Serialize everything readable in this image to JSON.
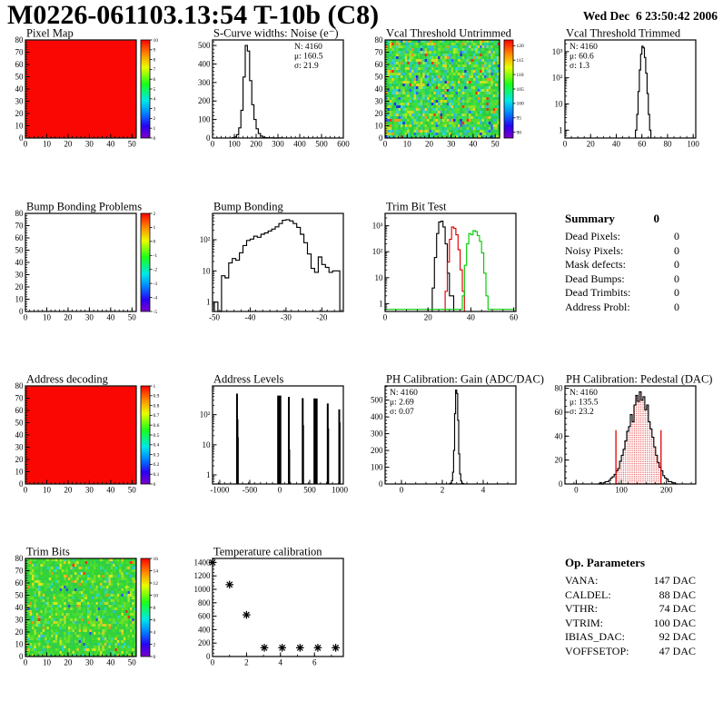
{
  "header": {
    "title": "M0226-061103.13:54 T-10b (C8)",
    "date": "Wed Dec  6 23:50:42 2006"
  },
  "summary": {
    "title": "Summary",
    "value": "0",
    "rows": [
      {
        "label": "Dead Pixels:",
        "value": "0"
      },
      {
        "label": "Noisy Pixels:",
        "value": "0"
      },
      {
        "label": "Mask defects:",
        "value": "0"
      },
      {
        "label": "Dead Bumps:",
        "value": "0"
      },
      {
        "label": "Dead Trimbits:",
        "value": "0"
      },
      {
        "label": "Address Probl:",
        "value": "0"
      }
    ]
  },
  "op_parameters": {
    "title": "Op. Parameters",
    "rows": [
      {
        "label": "VANA:",
        "value": "147 DAC"
      },
      {
        "label": "CALDEL:",
        "value": "88 DAC"
      },
      {
        "label": "VTHR:",
        "value": "74 DAC"
      },
      {
        "label": "VTRIM:",
        "value": "100 DAC"
      },
      {
        "label": "IBIAS_DAC:",
        "value": "92 DAC"
      },
      {
        "label": "VOFFSETOP:",
        "value": "47 DAC"
      }
    ]
  },
  "colors": {
    "map_red": "#fb0703",
    "hist_black": "#000000",
    "hist_red": "#e00000",
    "hist_green": "#00cc00"
  },
  "chart_data": [
    {
      "id": "pixel_map",
      "type": "heatmap",
      "title": "Pixel Map",
      "xlim": [
        0,
        52
      ],
      "ylim": [
        0,
        80
      ],
      "xticks": [
        0,
        10,
        20,
        30,
        40,
        50
      ],
      "yticks": [
        0,
        10,
        20,
        30,
        40,
        50,
        60,
        70,
        80
      ],
      "xminor": 2,
      "yminor": 2,
      "fill": "uniform",
      "fill_color": "#fb0703",
      "colorbar": {
        "min": 0,
        "max": 10,
        "ticks": [
          0,
          1,
          2,
          3,
          4,
          5,
          6,
          7,
          8,
          9,
          10
        ]
      }
    },
    {
      "id": "scurve_noise",
      "type": "hist",
      "title": "S-Curve widths: Noise (e⁻)",
      "xlim": [
        0,
        600
      ],
      "xticks": [
        0,
        100,
        200,
        300,
        400,
        500,
        600
      ],
      "xminor": 20,
      "yscale": "linear",
      "ylim": [
        0,
        530
      ],
      "yticks": [
        0,
        100,
        200,
        300,
        400,
        500
      ],
      "yminor": 20,
      "x0": 90,
      "bin": 10,
      "values": [
        2,
        6,
        18,
        55,
        150,
        330,
        500,
        470,
        310,
        180,
        100,
        50,
        24,
        11,
        5,
        2,
        1,
        1,
        1,
        0,
        0,
        1,
        1
      ],
      "stats": {
        "pos": "tr",
        "lines": [
          {
            "text": "N: 4160"
          },
          {
            "text": "μ: 160.5"
          },
          {
            "text": "σ: 21.9"
          }
        ]
      }
    },
    {
      "id": "vcal_untrimmed",
      "type": "heatmap",
      "title": "Vcal Threshold Untrimmed",
      "xlim": [
        0,
        52
      ],
      "ylim": [
        0,
        80
      ],
      "xticks": [
        0,
        10,
        20,
        30,
        40,
        50
      ],
      "yticks": [
        0,
        10,
        20,
        30,
        40,
        50,
        60,
        70,
        80
      ],
      "xminor": 2,
      "yminor": 2,
      "fill": "noise",
      "seed": 7,
      "palette": [
        [
          "#22d06a",
          3
        ],
        [
          "#2ecc40",
          6
        ],
        [
          "#3ae03a",
          5
        ],
        [
          "#59dd2e",
          4
        ],
        [
          "#8ce42c",
          3
        ],
        [
          "#bfe626",
          2
        ],
        [
          "#29d2a4",
          3
        ],
        [
          "#34d6d6",
          2
        ],
        [
          "#3aaee8",
          1.2
        ],
        [
          "#2f66f2",
          0.8
        ],
        [
          "#2430e0",
          0.4
        ],
        [
          "#f2d01e",
          1.2
        ],
        [
          "#f0961c",
          0.6
        ],
        [
          "#ea3414",
          0.4
        ]
      ],
      "colorbar": {
        "min": 88,
        "max": 122,
        "ticks": [
          90,
          95,
          100,
          105,
          110,
          115,
          120
        ]
      }
    },
    {
      "id": "vcal_trimmed",
      "type": "hist",
      "title": "Vcal Threshold Trimmed",
      "xlim": [
        0,
        102
      ],
      "xticks": [
        0,
        20,
        40,
        60,
        80,
        100
      ],
      "xminor": 5,
      "yscale": "log",
      "ylim": [
        0.5,
        2800
      ],
      "yticks": [
        [
          1,
          "1"
        ],
        [
          10,
          "10"
        ],
        [
          100,
          "10²"
        ],
        [
          1000,
          "10³"
        ]
      ],
      "x0": 55,
      "bin": 1,
      "values": [
        1,
        4,
        30,
        200,
        800,
        1600,
        1400,
        600,
        150,
        25,
        4,
        1
      ],
      "stats": {
        "pos": "tl",
        "lines": [
          {
            "text": "N: 4160"
          },
          {
            "text": "μ: 60.6"
          },
          {
            "text": "σ:  1.3"
          }
        ]
      }
    },
    {
      "id": "bump_problems",
      "type": "heatmap",
      "title": "Bump Bonding Problems",
      "xlim": [
        0,
        52
      ],
      "ylim": [
        0,
        80
      ],
      "xticks": [
        0,
        10,
        20,
        30,
        40,
        50
      ],
      "yticks": [
        0,
        10,
        20,
        30,
        40,
        50,
        60,
        70,
        80
      ],
      "xminor": 2,
      "yminor": 2,
      "fill": "none",
      "colorbar": {
        "min": -5,
        "max": 2,
        "ticks": [
          -5,
          -4,
          -3,
          -2,
          -1,
          0,
          1,
          2
        ]
      }
    },
    {
      "id": "bump_bonding",
      "type": "hist",
      "title": "Bump Bonding",
      "xlim": [
        -50.5,
        -14
      ],
      "xticks": [
        -50,
        -40,
        -30,
        -20
      ],
      "xminor": 2,
      "yscale": "log",
      "ylim": [
        0.5,
        700
      ],
      "yticks": [
        [
          1,
          "1"
        ],
        [
          10,
          "10"
        ],
        [
          100,
          "10²"
        ]
      ],
      "x0": -50,
      "bin": 1,
      "values": [
        1,
        0,
        7,
        6,
        18,
        25,
        22,
        38,
        65,
        95,
        105,
        130,
        120,
        150,
        165,
        190,
        220,
        260,
        330,
        420,
        440,
        400,
        330,
        250,
        150,
        80,
        35,
        12,
        9,
        28,
        16,
        13,
        9,
        10,
        10
      ]
    },
    {
      "id": "trim_bit_test",
      "type": "hist",
      "title": "Trim Bit Test",
      "xlim": [
        0,
        61
      ],
      "xticks": [
        0,
        20,
        40,
        60
      ],
      "xminor": 5,
      "yscale": "log",
      "ylim": [
        0.5,
        3000
      ],
      "yticks": [
        [
          1,
          "1"
        ],
        [
          10,
          "10"
        ],
        [
          100,
          "10²"
        ],
        [
          1000,
          "10³"
        ]
      ],
      "series": [
        {
          "x0": 22,
          "bin": 1,
          "color": "#000000",
          "values": [
            4,
            60,
            500,
            1400,
            1500,
            900,
            200,
            15,
            2,
            2
          ]
        },
        {
          "x0": 28,
          "bin": 1,
          "color": "#e00000",
          "values": [
            3,
            40,
            300,
            900,
            800,
            450,
            120,
            20,
            3
          ]
        },
        {
          "x0": 0,
          "bin": 1,
          "color": "#00cc00",
          "values": [
            0.6,
            0.6,
            0.6,
            0.6,
            0.6,
            0.6,
            0.6,
            0.6,
            0.6,
            0.6,
            0.6,
            0.6,
            0.6,
            0.6,
            0.6,
            0.6,
            0.6,
            0.6,
            0.6,
            0.6,
            0.6,
            0.6,
            0.6,
            0.6,
            0.6,
            0.6,
            0.6,
            0.6,
            0.6,
            0.6,
            0.6,
            0.6,
            0.6,
            0.6,
            0.6,
            0.6,
            2,
            30,
            200,
            500,
            450,
            650,
            600,
            420,
            250,
            90,
            15,
            2,
            0.6,
            0.6,
            0.6,
            0.6,
            0.6,
            0.6,
            0.6,
            0.6,
            0.6,
            0.6,
            0.6,
            0.6
          ]
        }
      ]
    },
    {
      "id": "address_decoding",
      "type": "heatmap",
      "title": "Address decoding",
      "xlim": [
        0,
        52
      ],
      "ylim": [
        0,
        80
      ],
      "xticks": [
        0,
        10,
        20,
        30,
        40,
        50
      ],
      "yticks": [
        0,
        10,
        20,
        30,
        40,
        50,
        60,
        70,
        80
      ],
      "xminor": 2,
      "yminor": 2,
      "fill": "uniform",
      "fill_color": "#fb0703",
      "colorbar": {
        "min": 0,
        "max": 1,
        "ticks": [
          0,
          0.1,
          0.2,
          0.3,
          0.4,
          0.5,
          0.6,
          0.7,
          0.8,
          0.9,
          1
        ]
      }
    },
    {
      "id": "address_levels",
      "type": "spikes",
      "title": "Address Levels",
      "xlim": [
        -1120,
        1060
      ],
      "xticks": [
        -1000,
        -500,
        0,
        500,
        1000
      ],
      "xminor": 100,
      "yscale": "log",
      "ylim": [
        0.5,
        900
      ],
      "yticks": [
        [
          1,
          "1"
        ],
        [
          10,
          "10"
        ],
        [
          100,
          "10²"
        ]
      ],
      "spikes": [
        [
          -712,
          500,
          2
        ],
        [
          -700,
          70,
          1.4
        ],
        [
          -694,
          18,
          1.4
        ],
        [
          -8,
          430,
          4.5
        ],
        [
          152,
          390,
          2
        ],
        [
          163,
          7,
          1.4
        ],
        [
          383,
          355,
          2
        ],
        [
          394,
          45,
          1.4
        ],
        [
          597,
          345,
          4.5
        ],
        [
          800,
          235,
          2
        ],
        [
          812,
          35,
          1.4
        ],
        [
          992,
          150,
          2
        ],
        [
          1003,
          55,
          1.4
        ]
      ]
    },
    {
      "id": "ph_gain",
      "type": "hist",
      "title": "PH Calibration: Gain (ADC/DAC)",
      "xlim": [
        -0.8,
        5.6
      ],
      "xticks": [
        0,
        2,
        4
      ],
      "xminor": 0.5,
      "yscale": "linear",
      "ylim": [
        0,
        585
      ],
      "yticks": [
        0,
        100,
        200,
        300,
        400,
        500
      ],
      "yminor": 20,
      "x0": 2.35,
      "bin": 0.05,
      "values": [
        2,
        6,
        20,
        70,
        200,
        420,
        560,
        540,
        380,
        180,
        60,
        18,
        5,
        2
      ],
      "stats": {
        "pos": "tl",
        "lines": [
          {
            "text": "N: 4160"
          },
          {
            "text": "μ: 2.69"
          },
          {
            "text": "σ: 0.07"
          }
        ]
      }
    },
    {
      "id": "ph_pedestal",
      "type": "hist",
      "title": "PH Calibration: Pedestal (DAC)",
      "xlim": [
        -25,
        265
      ],
      "xticks": [
        0,
        100,
        200
      ],
      "xminor": 20,
      "yscale": "linear",
      "ylim": [
        0,
        82
      ],
      "yticks": [
        0,
        20,
        40,
        60,
        80
      ],
      "yminor": 5,
      "x0": 48,
      "bin": 4,
      "values": [
        0,
        1,
        0,
        1,
        2,
        2,
        3,
        5,
        6,
        8,
        11,
        13,
        19,
        24,
        29,
        36,
        44,
        48,
        58,
        52,
        66,
        74,
        69,
        77,
        70,
        73,
        62,
        66,
        52,
        46,
        39,
        31,
        24,
        18,
        14,
        11,
        7,
        5,
        4,
        2,
        2,
        1,
        1,
        0
      ],
      "fill_between": {
        "from": 88,
        "to": 188,
        "color": "#e00000"
      },
      "vlines": [
        {
          "x": 88,
          "y": 45,
          "color": "#e00000"
        },
        {
          "x": 188,
          "y": 45,
          "color": "#e00000"
        }
      ],
      "stats": {
        "pos": "tl",
        "lines": [
          {
            "text": "N: 4160"
          },
          {
            "text": "μ: 135.5",
            "color": "#e00000"
          },
          {
            "text": "σ: 23.2",
            "color": "#e00000"
          }
        ]
      }
    },
    {
      "id": "trim_bits",
      "type": "heatmap",
      "title": "Trim Bits",
      "xlim": [
        0,
        52
      ],
      "ylim": [
        0,
        80
      ],
      "xticks": [
        0,
        10,
        20,
        30,
        40,
        50
      ],
      "yticks": [
        0,
        10,
        20,
        30,
        40,
        50,
        60,
        70,
        80
      ],
      "xminor": 2,
      "yminor": 2,
      "fill": "noise",
      "seed": 13,
      "palette": [
        [
          "#35d435",
          8
        ],
        [
          "#2ecc50",
          5
        ],
        [
          "#47dd2e",
          5
        ],
        [
          "#6fe02a",
          3
        ],
        [
          "#a5e628",
          1.5
        ],
        [
          "#d8e822",
          0.8
        ],
        [
          "#f2c51e",
          0.5
        ],
        [
          "#ef8c1a",
          0.25
        ],
        [
          "#e83212",
          0.15
        ],
        [
          "#2ad6c0",
          1
        ],
        [
          "#33b8e6",
          0.4
        ],
        [
          "#2b50e8",
          0.2
        ]
      ],
      "colorbar": {
        "min": 0,
        "max": 16,
        "ticks": [
          0,
          2,
          4,
          6,
          8,
          10,
          12,
          14,
          16
        ]
      }
    },
    {
      "id": "temp_calibration",
      "type": "scatter",
      "title": "Temperature calibration",
      "xlim": [
        0,
        7.7
      ],
      "xticks": [
        0,
        2,
        4,
        6
      ],
      "xminor": 1,
      "yscale": "linear",
      "ylim": [
        0,
        1460
      ],
      "yticks": [
        0,
        200,
        400,
        600,
        800,
        1000,
        1200,
        1400
      ],
      "yminor": 50,
      "points": [
        [
          0,
          1400
        ],
        [
          1,
          1070
        ],
        [
          2,
          620
        ],
        [
          3.05,
          130
        ],
        [
          4.1,
          130
        ],
        [
          5.15,
          130
        ],
        [
          6.2,
          130
        ],
        [
          7.25,
          130
        ]
      ]
    }
  ]
}
